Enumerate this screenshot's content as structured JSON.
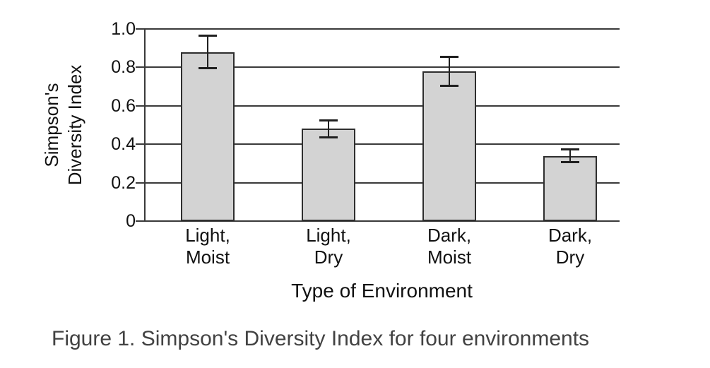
{
  "figure": {
    "caption": "Figure 1. Simpson's Diversity Index for four environments"
  },
  "chart_data": {
    "type": "bar",
    "title": "",
    "xlabel": "Type of Environment",
    "ylabel": "Simpson's Diversity Index",
    "ylabel_lines": [
      "Simpson's",
      "Diversity Index"
    ],
    "categories": [
      "Light, Moist",
      "Light, Dry",
      "Dark, Moist",
      "Dark, Dry"
    ],
    "category_lines": [
      [
        "Light,",
        "Moist"
      ],
      [
        "Light,",
        "Dry"
      ],
      [
        "Dark,",
        "Moist"
      ],
      [
        "Dark,",
        "Dry"
      ]
    ],
    "values": [
      0.88,
      0.48,
      0.78,
      0.34
    ],
    "error_bars": [
      0.09,
      0.05,
      0.08,
      0.04
    ],
    "ylim": [
      0,
      1.0
    ],
    "yticks": [
      0,
      0.2,
      0.4,
      0.6,
      0.8,
      1.0
    ],
    "ytick_labels": [
      "0",
      "0.2",
      "0.4",
      "0.6",
      "0.8",
      "1.0"
    ],
    "grid": "horizontal full-width",
    "legend": "none",
    "colors": {
      "background": "#ffffff",
      "bar_fill": "#d3d3d3",
      "bar_border": "#2e2e2e",
      "grid_axis": "#3a3a3a",
      "error_bar": "#1f1f1f",
      "label_text": "#111111",
      "caption_text": "#424242"
    }
  }
}
